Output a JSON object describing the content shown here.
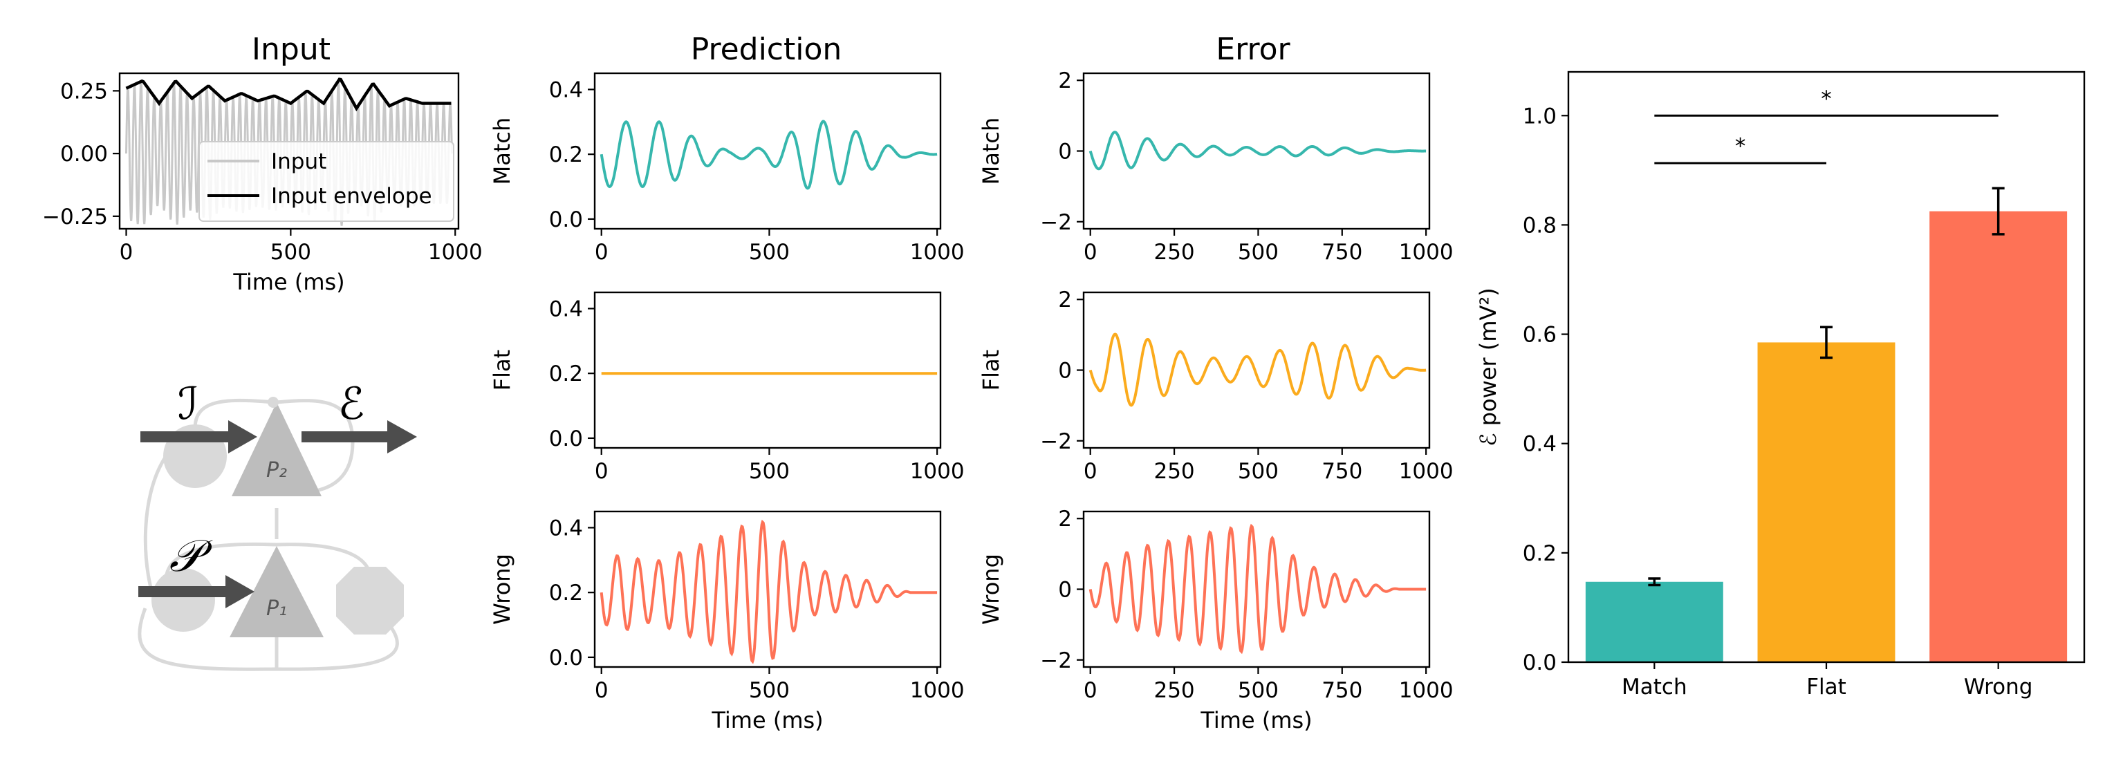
{
  "colors": {
    "match": "#36b7ad",
    "flat": "#fbab1d",
    "wrong": "#fe7256",
    "input": "#c8c8c8",
    "envelope": "#000000",
    "circuit": "#d9d9d9",
    "circuit_dark": "#bdbdbd",
    "arrow": "#4d4d4d"
  },
  "titles": {
    "input": "Input",
    "prediction": "Prediction",
    "error": "Error"
  },
  "row_labels": {
    "match": "Match",
    "flat": "Flat",
    "wrong": "Wrong"
  },
  "axis_labels": {
    "time": "Time (ms)",
    "power": "ℰ power (mV²)"
  },
  "legend": {
    "input": "Input",
    "envelope": "Input envelope"
  },
  "circuit": {
    "input_symbol": "ℐ",
    "error_symbol": "ℰ",
    "prediction_symbol": "𝒫",
    "p2": "P₂",
    "p1": "P₁"
  },
  "chart_data": [
    {
      "type": "line",
      "panel": "input",
      "title": "Input",
      "xlabel": "Time (ms)",
      "xlim": [
        -20,
        1010
      ],
      "ylim": [
        -0.3,
        0.32
      ],
      "xticks": [
        "0",
        "500",
        "1000"
      ],
      "yticks": [
        "−0.25",
        "0.00",
        "0.25"
      ],
      "series": [
        {
          "name": "Input",
          "carrier_period_ms": 20,
          "note_shape": "oscillates inside ± envelope"
        },
        {
          "name": "Input envelope",
          "x": [
            0,
            50,
            100,
            150,
            200,
            250,
            300,
            350,
            400,
            450,
            500,
            550,
            600,
            650,
            700,
            750,
            800,
            850,
            900,
            950,
            990
          ],
          "y": [
            0.26,
            0.29,
            0.2,
            0.29,
            0.22,
            0.27,
            0.21,
            0.24,
            0.21,
            0.23,
            0.2,
            0.25,
            0.2,
            0.3,
            0.18,
            0.28,
            0.19,
            0.22,
            0.2,
            0.2,
            0.2
          ]
        }
      ],
      "legend_position": "lower-right"
    },
    {
      "type": "line",
      "panel": "prediction",
      "row": "Match",
      "xlim": [
        -20,
        1010
      ],
      "ylim": [
        -0.03,
        0.45
      ],
      "xticks": [
        "0",
        "500",
        "1000"
      ],
      "yticks": [
        "0.0",
        "0.2",
        "0.4"
      ],
      "series": [
        {
          "color": "match",
          "baseline": 0.2,
          "period_ms": 98,
          "peaks": [
            [
              20,
              0.1
            ],
            [
              60,
              0.1
            ],
            [
              120,
              0.1
            ],
            [
              180,
              0.1
            ],
            [
              260,
              0.06
            ],
            [
              380,
              0.01
            ],
            [
              480,
              0.02
            ],
            [
              540,
              0.05
            ],
            [
              620,
              0.11
            ],
            [
              720,
              0.09
            ],
            [
              820,
              0.04
            ],
            [
              900,
              0.01
            ],
            [
              1000,
              0.0
            ]
          ]
        }
      ]
    },
    {
      "type": "line",
      "panel": "prediction",
      "row": "Flat",
      "xlim": [
        -20,
        1010
      ],
      "ylim": [
        -0.03,
        0.45
      ],
      "xticks": [
        "0",
        "500",
        "1000"
      ],
      "yticks": [
        "0.0",
        "0.2",
        "0.4"
      ],
      "series": [
        {
          "color": "flat",
          "baseline": 0.2,
          "period_ms": 100,
          "peaks": [
            [
              0,
              0.0
            ],
            [
              1000,
              0.0
            ]
          ]
        }
      ]
    },
    {
      "type": "line",
      "panel": "prediction",
      "row": "Wrong",
      "xlim": [
        -20,
        1010
      ],
      "ylim": [
        -0.03,
        0.45
      ],
      "xticks": [
        "0",
        "500",
        "1000"
      ],
      "yticks": [
        "0.0",
        "0.2",
        "0.4"
      ],
      "series": [
        {
          "color": "wrong",
          "baseline": 0.2,
          "period_ms": 62,
          "peaks": [
            [
              20,
              0.1
            ],
            [
              60,
              0.12
            ],
            [
              150,
              0.09
            ],
            [
              250,
              0.13
            ],
            [
              350,
              0.17
            ],
            [
              430,
              0.21
            ],
            [
              500,
              0.22
            ],
            [
              560,
              0.13
            ],
            [
              630,
              0.07
            ],
            [
              700,
              0.06
            ],
            [
              780,
              0.04
            ],
            [
              860,
              0.02
            ],
            [
              920,
              0.0
            ],
            [
              1000,
              0.0
            ]
          ]
        }
      ]
    },
    {
      "type": "line",
      "panel": "error",
      "row": "Match",
      "xlim": [
        -20,
        1010
      ],
      "ylim": [
        -2.2,
        2.2
      ],
      "xticks": [
        "0",
        "250",
        "500",
        "750",
        "1000"
      ],
      "yticks": [
        "−2",
        "0",
        "2"
      ],
      "series": [
        {
          "color": "match",
          "baseline": 0,
          "period_ms": 98,
          "peaks": [
            [
              20,
              0.5
            ],
            [
              60,
              0.55
            ],
            [
              120,
              0.48
            ],
            [
              200,
              0.28
            ],
            [
              280,
              0.18
            ],
            [
              400,
              0.12
            ],
            [
              500,
              0.1
            ],
            [
              600,
              0.14
            ],
            [
              700,
              0.12
            ],
            [
              800,
              0.07
            ],
            [
              900,
              0.02
            ],
            [
              1000,
              0.0
            ]
          ]
        }
      ]
    },
    {
      "type": "line",
      "panel": "error",
      "row": "Flat",
      "xlim": [
        -20,
        1010
      ],
      "ylim": [
        -2.2,
        2.2
      ],
      "xticks": [
        "0",
        "250",
        "500",
        "750",
        "1000"
      ],
      "yticks": [
        "−2",
        "0",
        "2"
      ],
      "series": [
        {
          "color": "flat",
          "baseline": 0,
          "period_ms": 98,
          "peaks": [
            [
              20,
              0.5
            ],
            [
              60,
              1.0
            ],
            [
              100,
              1.05
            ],
            [
              200,
              0.8
            ],
            [
              300,
              0.4
            ],
            [
              400,
              0.32
            ],
            [
              480,
              0.4
            ],
            [
              560,
              0.55
            ],
            [
              640,
              0.75
            ],
            [
              720,
              0.8
            ],
            [
              800,
              0.6
            ],
            [
              880,
              0.3
            ],
            [
              950,
              0.05
            ],
            [
              1000,
              0.0
            ]
          ]
        }
      ]
    },
    {
      "type": "line",
      "panel": "error",
      "row": "Wrong",
      "xlim": [
        -20,
        1010
      ],
      "ylim": [
        -2.2,
        2.2
      ],
      "xticks": [
        "0",
        "250",
        "500",
        "750",
        "1000"
      ],
      "yticks": [
        "−2",
        "0",
        "2"
      ],
      "series": [
        {
          "color": "wrong",
          "baseline": 0,
          "period_ms": 62,
          "peaks": [
            [
              20,
              0.5
            ],
            [
              60,
              0.85
            ],
            [
              150,
              1.2
            ],
            [
              250,
              1.4
            ],
            [
              350,
              1.6
            ],
            [
              430,
              1.75
            ],
            [
              500,
              1.8
            ],
            [
              560,
              1.3
            ],
            [
              630,
              0.75
            ],
            [
              700,
              0.5
            ],
            [
              780,
              0.3
            ],
            [
              860,
              0.1
            ],
            [
              920,
              0.0
            ],
            [
              1000,
              0.0
            ]
          ]
        }
      ]
    },
    {
      "type": "bar",
      "panel": "power",
      "ylabel": "ℰ power (mV²)",
      "categories": [
        "Match",
        "Flat",
        "Wrong"
      ],
      "values": [
        0.147,
        0.585,
        0.825
      ],
      "errors": [
        0.006,
        0.028,
        0.042
      ],
      "colors": [
        "match",
        "flat",
        "wrong"
      ],
      "ylim": [
        0,
        1.08
      ],
      "yticks": [
        "0.0",
        "0.2",
        "0.4",
        "0.6",
        "0.8",
        "1.0"
      ],
      "significance": [
        {
          "from": 0,
          "to": 1,
          "y": 0.913,
          "label": "*"
        },
        {
          "from": 0,
          "to": 2,
          "y": 1.0,
          "label": "*"
        }
      ]
    }
  ]
}
